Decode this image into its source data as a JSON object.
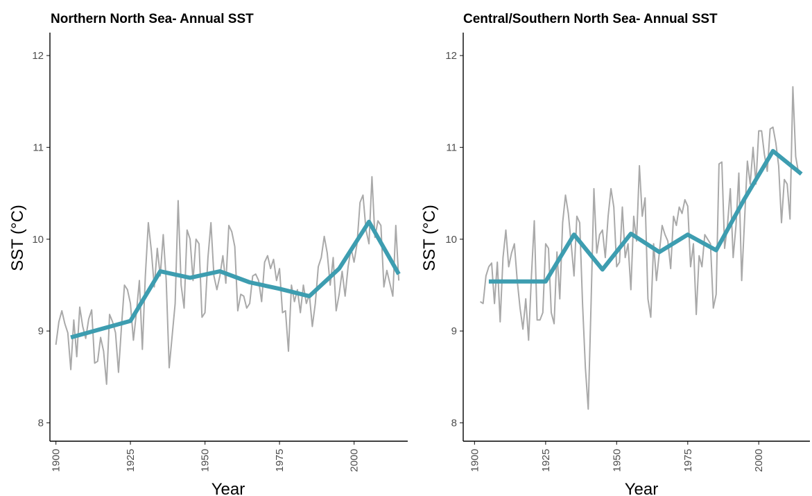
{
  "chart_data": [
    {
      "type": "line",
      "title": "Northern North Sea- Annual SST",
      "xlabel": "Year",
      "ylabel": "SST (°C)",
      "xlim": [
        1898,
        2018
      ],
      "ylim": [
        7.8,
        12.25
      ],
      "x_ticks": [
        1900,
        1925,
        1950,
        1975,
        2000
      ],
      "y_ticks": [
        8,
        9,
        10,
        11,
        12
      ],
      "grid": false,
      "series": [
        {
          "role": "annual",
          "color": "#a9a9a9",
          "x": [
            1900,
            1901,
            1902,
            1903,
            1904,
            1905,
            1906,
            1907,
            1908,
            1909,
            1910,
            1911,
            1912,
            1913,
            1914,
            1915,
            1916,
            1917,
            1918,
            1919,
            1920,
            1921,
            1922,
            1923,
            1924,
            1925,
            1926,
            1927,
            1928,
            1929,
            1930,
            1931,
            1932,
            1933,
            1934,
            1935,
            1936,
            1937,
            1938,
            1939,
            1940,
            1941,
            1942,
            1943,
            1944,
            1945,
            1946,
            1947,
            1948,
            1949,
            1950,
            1951,
            1952,
            1953,
            1954,
            1955,
            1956,
            1957,
            1958,
            1959,
            1960,
            1961,
            1962,
            1963,
            1964,
            1965,
            1966,
            1967,
            1968,
            1969,
            1970,
            1971,
            1972,
            1973,
            1974,
            1975,
            1976,
            1977,
            1978,
            1979,
            1980,
            1981,
            1982,
            1983,
            1984,
            1985,
            1986,
            1987,
            1988,
            1989,
            1990,
            1991,
            1992,
            1993,
            1994,
            1995,
            1996,
            1997,
            1998,
            1999,
            2000,
            2001,
            2002,
            2003,
            2004,
            2005,
            2006,
            2007,
            2008,
            2009,
            2010,
            2011,
            2012,
            2013,
            2014,
            2015
          ],
          "values": [
            8.85,
            9.1,
            9.22,
            9.08,
            8.98,
            8.58,
            9.12,
            8.72,
            9.26,
            9.05,
            8.92,
            9.13,
            9.23,
            8.65,
            8.67,
            8.93,
            8.78,
            8.42,
            9.18,
            9.1,
            8.98,
            8.55,
            9.05,
            9.5,
            9.45,
            9.3,
            8.9,
            9.2,
            9.55,
            8.8,
            9.6,
            10.18,
            9.88,
            9.48,
            9.9,
            9.6,
            10.05,
            9.55,
            8.6,
            8.95,
            9.3,
            10.42,
            9.5,
            9.25,
            10.1,
            10.0,
            9.55,
            10.0,
            9.95,
            9.15,
            9.2,
            9.8,
            10.18,
            9.6,
            9.45,
            9.6,
            9.82,
            9.52,
            10.15,
            10.08,
            9.92,
            9.22,
            9.4,
            9.38,
            9.25,
            9.3,
            9.6,
            9.62,
            9.55,
            9.32,
            9.75,
            9.82,
            9.68,
            9.78,
            9.55,
            9.68,
            9.2,
            9.22,
            8.78,
            9.5,
            9.32,
            9.45,
            9.2,
            9.5,
            9.3,
            9.4,
            9.05,
            9.3,
            9.7,
            9.8,
            10.03,
            9.85,
            9.5,
            9.8,
            9.22,
            9.4,
            9.65,
            9.38,
            9.7,
            9.9,
            9.75,
            9.95,
            10.4,
            10.48,
            10.1,
            9.95,
            10.68,
            10.02,
            10.2,
            10.15,
            9.48,
            9.66,
            9.52,
            9.38,
            10.15,
            9.55
          ]
        },
        {
          "role": "decadal",
          "color": "#3d9db0",
          "x": [
            1905,
            1925,
            1935,
            1945,
            1955,
            1965,
            1975,
            1985,
            1995,
            2005,
            2015
          ],
          "values": [
            8.93,
            9.11,
            9.65,
            9.58,
            9.65,
            9.53,
            9.46,
            9.38,
            9.68,
            10.19,
            9.62
          ]
        }
      ]
    },
    {
      "type": "line",
      "title": "Central/Southern North Sea- Annual SST",
      "xlabel": "Year",
      "ylabel": "SST (°C)",
      "xlim": [
        1896,
        2018
      ],
      "ylim": [
        7.8,
        12.25
      ],
      "x_ticks": [
        1900,
        1925,
        1950,
        1975,
        2000
      ],
      "y_ticks": [
        8,
        9,
        10,
        11,
        12
      ],
      "grid": false,
      "series": [
        {
          "role": "annual",
          "color": "#a9a9a9",
          "x": [
            1902,
            1903,
            1904,
            1905,
            1906,
            1907,
            1908,
            1909,
            1910,
            1911,
            1912,
            1913,
            1914,
            1915,
            1916,
            1917,
            1918,
            1919,
            1920,
            1921,
            1922,
            1923,
            1924,
            1925,
            1926,
            1927,
            1928,
            1929,
            1930,
            1931,
            1932,
            1933,
            1934,
            1935,
            1936,
            1937,
            1938,
            1939,
            1940,
            1941,
            1942,
            1943,
            1944,
            1945,
            1946,
            1947,
            1948,
            1949,
            1950,
            1951,
            1952,
            1953,
            1954,
            1955,
            1956,
            1957,
            1958,
            1959,
            1960,
            1961,
            1962,
            1963,
            1964,
            1965,
            1966,
            1967,
            1968,
            1969,
            1970,
            1971,
            1972,
            1973,
            1974,
            1975,
            1976,
            1977,
            1978,
            1979,
            1980,
            1981,
            1982,
            1983,
            1984,
            1985,
            1986,
            1987,
            1988,
            1989,
            1990,
            1991,
            1992,
            1993,
            1994,
            1995,
            1996,
            1997,
            1998,
            1999,
            2000,
            2001,
            2002,
            2003,
            2004,
            2005,
            2006,
            2007,
            2008,
            2009,
            2010,
            2011,
            2012,
            2013,
            2014,
            2015
          ],
          "values": [
            9.32,
            9.3,
            9.6,
            9.7,
            9.74,
            9.3,
            9.75,
            9.1,
            9.8,
            10.1,
            9.7,
            9.85,
            9.95,
            9.55,
            9.25,
            9.02,
            9.35,
            8.9,
            9.6,
            10.2,
            9.12,
            9.12,
            9.2,
            9.95,
            9.9,
            9.2,
            9.08,
            9.86,
            9.35,
            10.18,
            10.48,
            10.28,
            9.95,
            9.6,
            10.25,
            10.18,
            9.3,
            8.6,
            8.15,
            9.3,
            10.55,
            9.85,
            10.05,
            10.1,
            9.8,
            10.25,
            10.55,
            10.35,
            9.7,
            9.75,
            10.35,
            9.8,
            9.95,
            9.45,
            10.25,
            9.98,
            10.8,
            10.25,
            10.45,
            9.35,
            9.15,
            9.95,
            9.55,
            9.85,
            10.15,
            10.05,
            9.98,
            9.68,
            10.25,
            10.15,
            10.35,
            10.28,
            10.43,
            10.36,
            9.7,
            9.95,
            9.18,
            9.82,
            9.7,
            10.05,
            10.0,
            9.95,
            9.25,
            9.4,
            10.82,
            10.84,
            9.9,
            10.15,
            10.55,
            9.8,
            10.15,
            10.72,
            9.55,
            10.2,
            10.85,
            10.6,
            11.0,
            10.6,
            11.18,
            11.18,
            10.92,
            10.74,
            11.2,
            11.22,
            11.05,
            10.8,
            10.18,
            10.65,
            10.6,
            10.22,
            11.66,
            10.9,
            10.72,
            10.72
          ],
          "note_unused": ""
        },
        {
          "role": "decadal",
          "color": "#3d9db0",
          "x": [
            1905,
            1925,
            1935,
            1945,
            1955,
            1965,
            1975,
            1985,
            1995,
            2005,
            2015
          ],
          "values": [
            9.54,
            9.54,
            10.05,
            9.67,
            10.06,
            9.86,
            10.05,
            9.88,
            10.44,
            10.96,
            10.71
          ]
        }
      ]
    }
  ]
}
